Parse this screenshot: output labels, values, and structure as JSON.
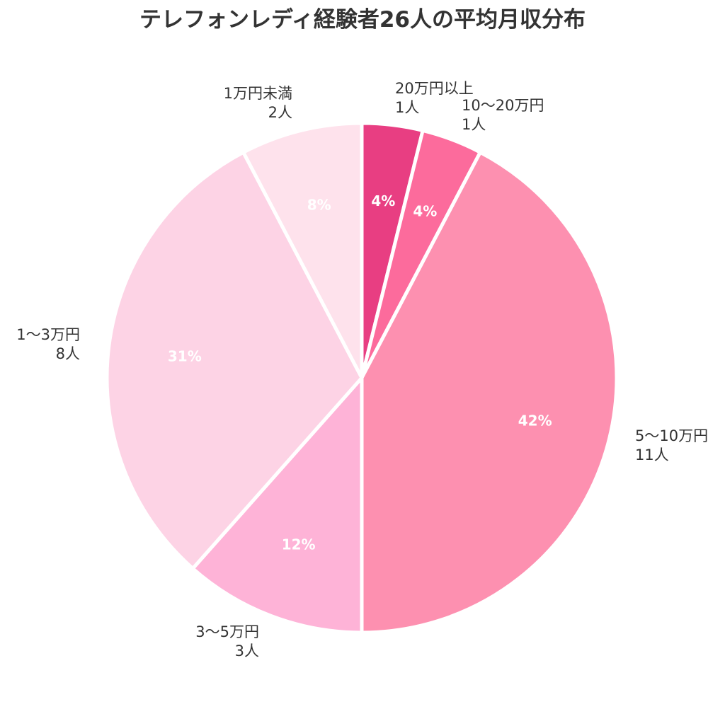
{
  "chart_data": {
    "type": "pie",
    "title": "テレフォンレディ経験者26人の平均月収分布",
    "start": "top",
    "direction": "clockwise",
    "slices": [
      {
        "category": "20万円以上",
        "count": "1人",
        "value": 1,
        "percent_label": "4%",
        "color": "#e83e82"
      },
      {
        "category": "10〜20万円",
        "count": "1人",
        "value": 1,
        "percent_label": "4%",
        "color": "#fc6b9c"
      },
      {
        "category": "5〜10万円",
        "count": "11人",
        "value": 11,
        "percent_label": "42%",
        "color": "#fd90b0"
      },
      {
        "category": "3〜5万円",
        "count": "3人",
        "value": 3,
        "percent_label": "12%",
        "color": "#feb3d7"
      },
      {
        "category": "1〜3万円",
        "count": "8人",
        "value": 8,
        "percent_label": "31%",
        "color": "#fdd3e5"
      },
      {
        "category": "1万円未満",
        "count": "2人",
        "value": 2,
        "percent_label": "8%",
        "color": "#fee2ec"
      }
    ]
  }
}
